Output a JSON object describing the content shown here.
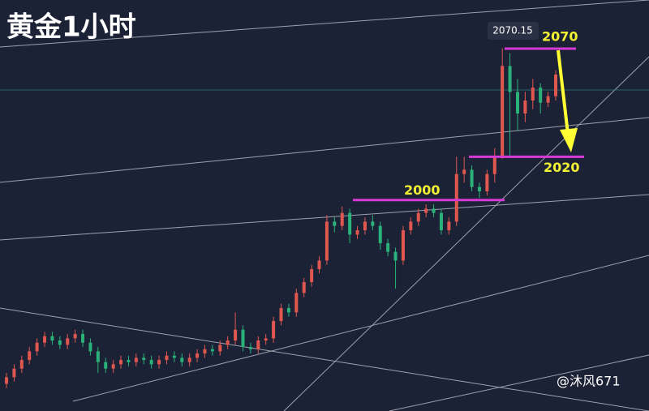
{
  "chart_data": {
    "type": "candlestick",
    "title": "黄金1小时",
    "up_color": "#e0574f",
    "down_color": "#2bb27a",
    "ylim": [
      1902.4,
      2092.5
    ],
    "open": [
      1915,
      1918,
      1922,
      1926,
      1930,
      1934,
      1937,
      1935,
      1933,
      1936,
      1938,
      1934,
      1930,
      1925,
      1922,
      1924,
      1926,
      1925,
      1927,
      1926,
      1924,
      1926,
      1928,
      1927,
      1925,
      1927,
      1929,
      1931,
      1930,
      1933,
      1935,
      1940,
      1932,
      1931,
      1935,
      1936,
      1944,
      1950,
      1948,
      1957,
      1962,
      1968,
      1972,
      1990,
      1988,
      1994,
      1984,
      1986,
      1990,
      1988,
      1980,
      1976,
      1972,
      1986,
      1990,
      1994,
      1996,
      1994,
      1986,
      1990,
      2012,
      2014,
      2006,
      2004,
      2012,
      2020,
      2062,
      2050,
      2040,
      2046,
      2052,
      2045,
      2048
    ],
    "high": [
      1920,
      1924,
      1928,
      1932,
      1936,
      1939,
      1939,
      1937,
      1938,
      1940,
      1940,
      1936,
      1932,
      1927,
      1926,
      1928,
      1928,
      1929,
      1929,
      1928,
      1928,
      1930,
      1930,
      1929,
      1929,
      1931,
      1933,
      1933,
      1935,
      1937,
      1948,
      1942,
      1934,
      1937,
      1938,
      1946,
      1952,
      1952,
      1959,
      1964,
      1970,
      1974,
      1993,
      1992,
      1997,
      1996,
      1988,
      1992,
      1993,
      1990,
      1982,
      1978,
      1988,
      1992,
      1996,
      1998,
      1998,
      1996,
      1992,
      2020,
      2020,
      2016,
      2008,
      2014,
      2024,
      2070.15,
      2068,
      2056,
      2050,
      2056,
      2054,
      2050,
      2060
    ],
    "low": [
      1913,
      1916,
      1920,
      1924,
      1928,
      1932,
      1933,
      1931,
      1931,
      1934,
      1932,
      1928,
      1920,
      1920,
      1920,
      1922,
      1923,
      1923,
      1924,
      1922,
      1922,
      1924,
      1925,
      1923,
      1923,
      1925,
      1927,
      1928,
      1928,
      1931,
      1933,
      1930,
      1929,
      1929,
      1933,
      1934,
      1942,
      1946,
      1946,
      1955,
      1960,
      1966,
      1970,
      1985,
      1986,
      1980,
      1982,
      1984,
      1986,
      1977,
      1974,
      1959,
      1970,
      1984,
      1988,
      1992,
      1992,
      1984,
      1984,
      1988,
      2008,
      2004,
      2001,
      2002,
      2008,
      2019,
      2020,
      2032,
      2036,
      2042,
      2040,
      2043,
      2046
    ],
    "close": [
      1918,
      1922,
      1926,
      1930,
      1934,
      1937,
      1935,
      1933,
      1936,
      1938,
      1934,
      1930,
      1925,
      1922,
      1924,
      1926,
      1925,
      1927,
      1926,
      1924,
      1926,
      1928,
      1927,
      1925,
      1927,
      1929,
      1931,
      1930,
      1933,
      1935,
      1940,
      1932,
      1931,
      1935,
      1936,
      1944,
      1950,
      1948,
      1957,
      1962,
      1968,
      1972,
      1990,
      1988,
      1994,
      1984,
      1986,
      1990,
      1988,
      1980,
      1976,
      1972,
      1986,
      1990,
      1994,
      1996,
      1994,
      1986,
      1990,
      2012,
      2014,
      2006,
      2004,
      2012,
      2020,
      2062,
      2050,
      2040,
      2046,
      2052,
      2045,
      2048,
      2058
    ],
    "levels": [
      2070,
      2020,
      2000
    ],
    "level_color": "#d63ad6",
    "watermark": "@沐风671"
  }
}
